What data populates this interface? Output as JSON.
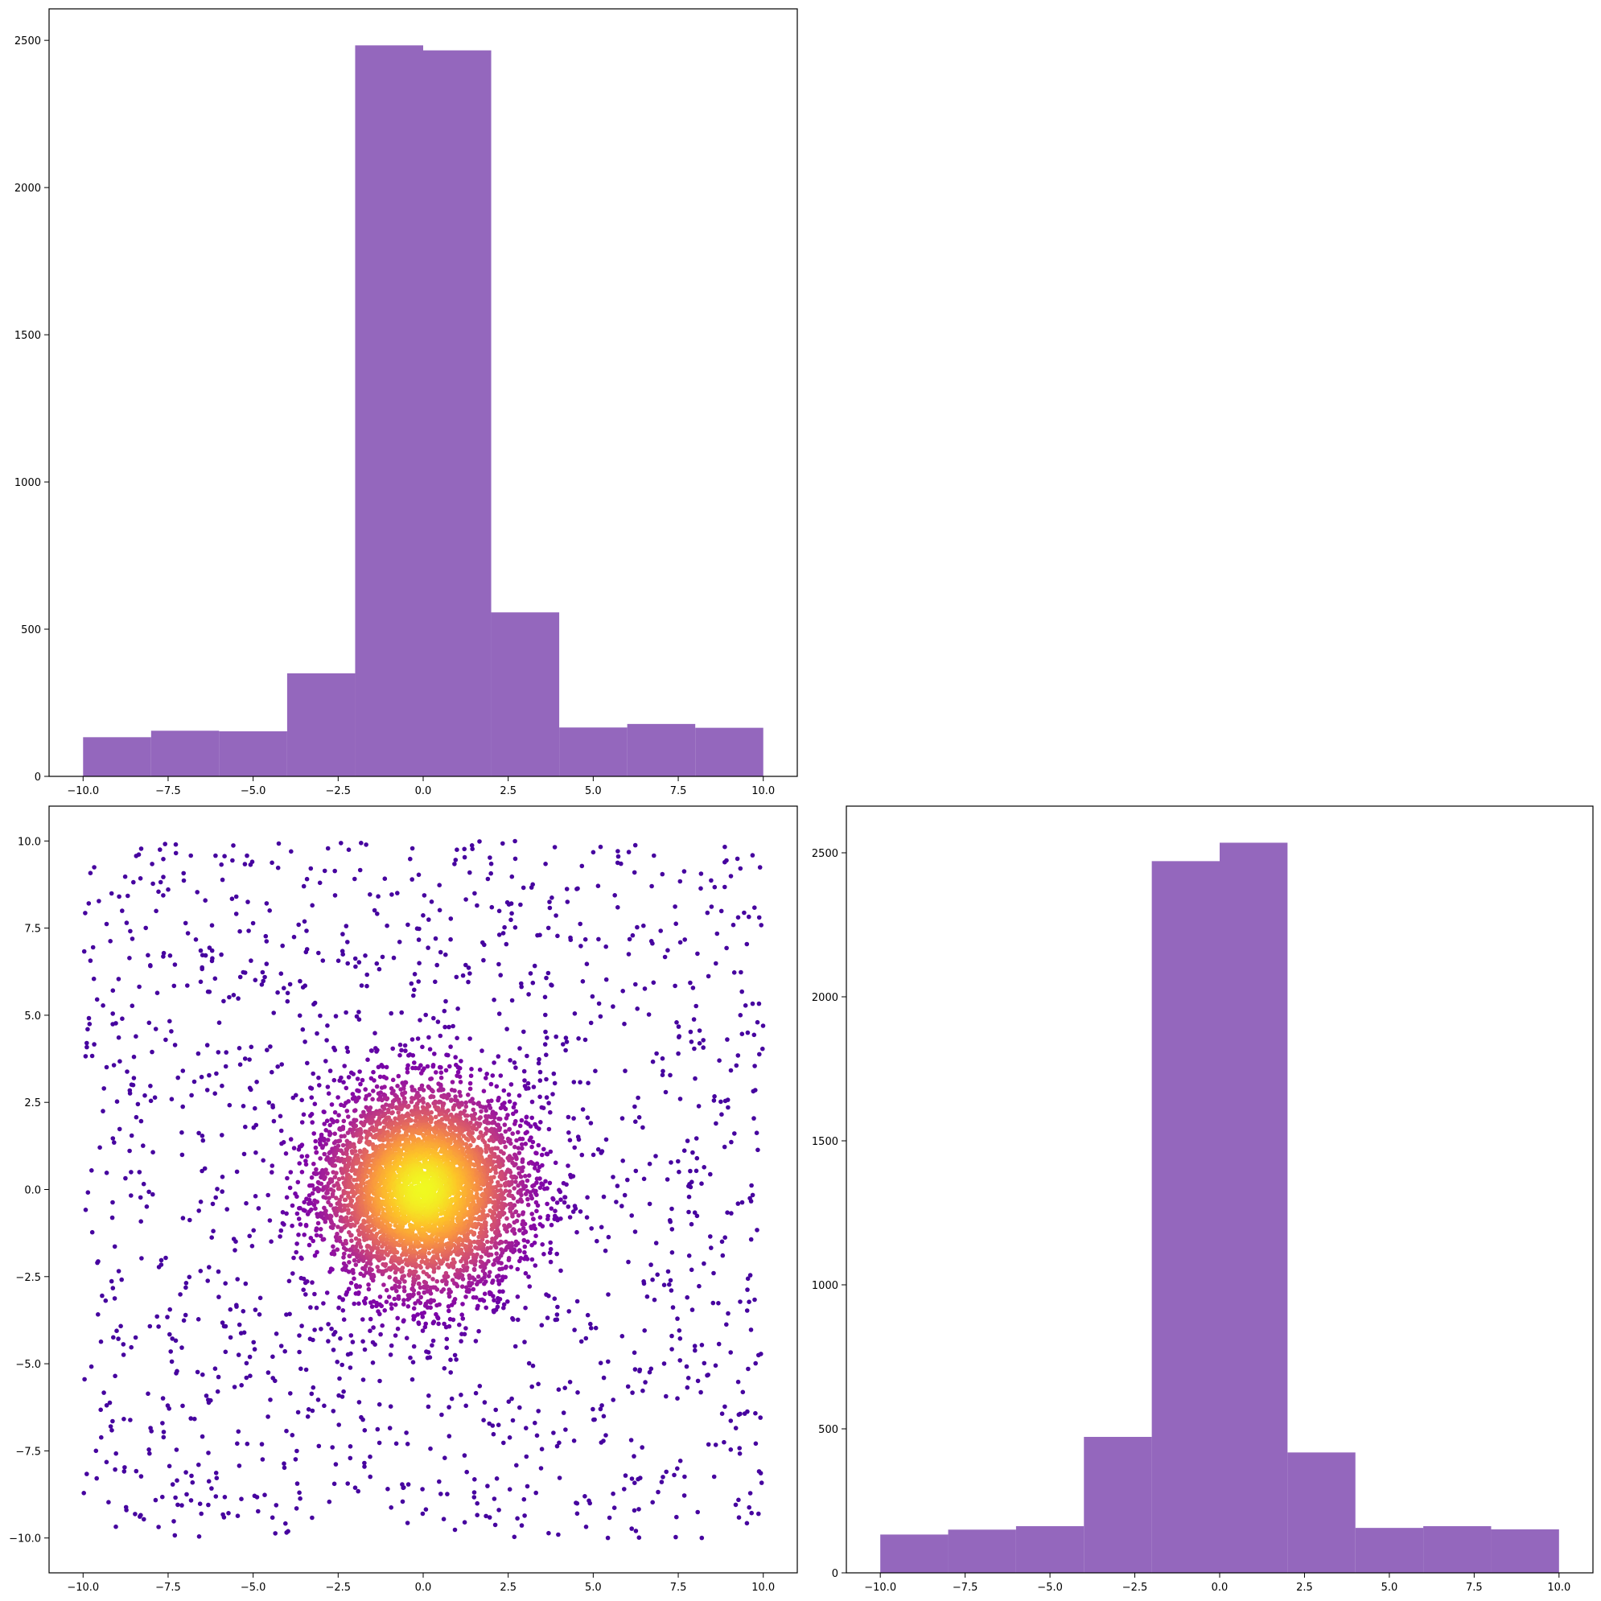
{
  "chart_data": [
    {
      "id": "top-left",
      "type": "histogram",
      "title": "",
      "xlabel": "",
      "ylabel": "",
      "bin_edges": [
        -10,
        -8,
        -6,
        -4,
        -2,
        0,
        2,
        4,
        6,
        8,
        10
      ],
      "counts": [
        133,
        155,
        153,
        350,
        2483,
        2466,
        557,
        166,
        178,
        165
      ],
      "bar_color": "#9467bd",
      "xlim": [
        -11,
        11
      ],
      "ylim": [
        0,
        2607
      ],
      "xticks": [
        -10.0,
        -7.5,
        -5.0,
        -2.5,
        0.0,
        2.5,
        5.0,
        7.5,
        10.0
      ],
      "yticks": [
        0,
        500,
        1000,
        1500,
        2000,
        2500
      ],
      "grid": false
    },
    {
      "id": "bottom-left",
      "type": "scatter",
      "title": "",
      "xlabel": "",
      "ylabel": "",
      "description": "Two-component point cloud: a uniform background on [-10,10]x[-10,10] plus a dense Gaussian cluster centred near (0,0) with spread about 1.5; points coloured by local density using the plasma colormap (dark purple = sparse, yellow = dense).",
      "components": [
        {
          "name": "uniform-background",
          "count": 1500,
          "xrange": [
            -10,
            10
          ],
          "yrange": [
            -10,
            10
          ]
        },
        {
          "name": "gaussian-cluster",
          "count": 5000,
          "center": [
            0,
            0
          ],
          "std": 1.5
        }
      ],
      "colormap": "plasma",
      "xlim": [
        -11,
        11
      ],
      "ylim": [
        -11,
        11
      ],
      "xticks": [
        -10.0,
        -7.5,
        -5.0,
        -2.5,
        0.0,
        2.5,
        5.0,
        7.5,
        10.0
      ],
      "yticks": [
        -10.0,
        -7.5,
        -5.0,
        -2.5,
        0.0,
        2.5,
        5.0,
        7.5,
        10.0
      ],
      "grid": false
    },
    {
      "id": "bottom-right",
      "type": "histogram",
      "title": "",
      "xlabel": "",
      "ylabel": "",
      "bin_edges": [
        -10,
        -8,
        -6,
        -4,
        -2,
        0,
        2,
        4,
        6,
        8,
        10
      ],
      "counts": [
        133,
        150,
        162,
        472,
        2471,
        2535,
        418,
        156,
        162,
        151
      ],
      "bar_color": "#9467bd",
      "xlim": [
        -11,
        11
      ],
      "ylim": [
        0,
        2662
      ],
      "xticks": [
        -10.0,
        -7.5,
        -5.0,
        -2.5,
        0.0,
        2.5,
        5.0,
        7.5,
        10.0
      ],
      "yticks": [
        0,
        500,
        1000,
        1500,
        2000,
        2500
      ],
      "grid": false
    }
  ]
}
